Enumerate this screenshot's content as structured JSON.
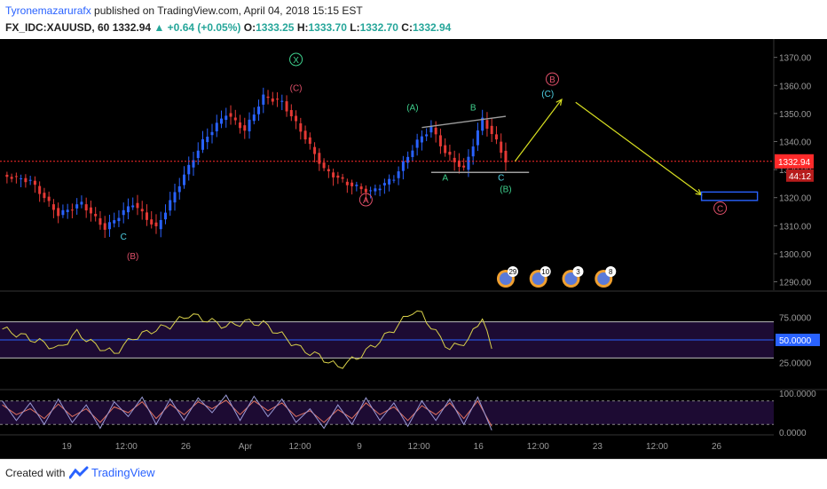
{
  "header": {
    "author": "Tyronemazarurafx",
    "published_text": "published on TradingView.com, April 04, 2018 15:15 EST",
    "symbol": "FX_IDC:XAUUSD, 60",
    "last": "1332.94",
    "change": "+0.64 (+0.05%)",
    "o_label": "O:",
    "o_value": "1333.25",
    "h_label": "H:",
    "h_value": "1333.70",
    "l_label": "L:",
    "l_value": "1332.70",
    "c_label": "C:",
    "c_value": "1332.94"
  },
  "footer": {
    "created_with": "Created with",
    "brand": "TradingView"
  },
  "colors": {
    "background": "#000000",
    "up_candle": "#2962ff",
    "down_candle": "#e53935",
    "price_line": "#ff2a2a",
    "indicator_line": "#d8d04a",
    "indicator_band": "#1d0b33",
    "stoch_k": "#9a9ad6",
    "stoch_d": "#e07060",
    "arrow": "#d9e021",
    "target_box": "#2962ff",
    "wave_green": "#3fd18e",
    "wave_red": "#e0506a",
    "wave_cyan": "#4fd2e6"
  },
  "chart_data": [
    {
      "type": "candlestick",
      "symbol": "FX_IDC:XAUUSD",
      "timeframe": "60",
      "yticks": [
        "1290.00",
        "1300.00",
        "1310.00",
        "1320.00",
        "1330.00",
        "1340.00",
        "1350.00",
        "1360.00",
        "1370.00"
      ],
      "ylim": [
        1287,
        1374
      ],
      "xticks": [
        "19",
        "12:00",
        "26",
        "Apr",
        "12:00",
        "9",
        "12:00",
        "16",
        "12:00",
        "23",
        "12:00",
        "26"
      ],
      "last_price": "1332.94",
      "countdown": "44:12",
      "path_points": [
        [
          0,
          1328
        ],
        [
          6,
          1326
        ],
        [
          12,
          1314
        ],
        [
          17,
          1318
        ],
        [
          22,
          1309
        ],
        [
          28,
          1318
        ],
        [
          33,
          1309
        ],
        [
          39,
          1328
        ],
        [
          43,
          1340
        ],
        [
          48,
          1350
        ],
        [
          52,
          1344
        ],
        [
          56,
          1356
        ],
        [
          60,
          1354
        ],
        [
          64,
          1344
        ],
        [
          69,
          1330
        ],
        [
          74,
          1325
        ],
        [
          79,
          1322
        ],
        [
          84,
          1327
        ],
        [
          89,
          1340
        ],
        [
          92,
          1345
        ],
        [
          95,
          1336
        ],
        [
          99,
          1330
        ],
        [
          103,
          1348
        ],
        [
          106,
          1340
        ],
        [
          108,
          1333
        ]
      ],
      "trendlines": [
        [
          [
            90,
            1345
          ],
          [
            108,
            1349
          ]
        ],
        [
          [
            92,
            1329
          ],
          [
            113,
            1329
          ]
        ]
      ],
      "projection_arrows": [
        [
          [
            110,
            1333
          ],
          [
            120,
            1355
          ]
        ],
        [
          [
            123,
            1354
          ],
          [
            150,
            1321
          ]
        ]
      ],
      "target_box": {
        "x": [
          150,
          162
        ],
        "y": [
          1319,
          1322
        ]
      },
      "wave_labels": [
        {
          "text": "X",
          "x": 63,
          "y": 1368,
          "color": "wave_green",
          "circled": true
        },
        {
          "text": "(C)",
          "x": 63,
          "y": 1358,
          "color": "wave_red"
        },
        {
          "text": "C",
          "x": 26,
          "y": 1305,
          "color": "wave_cyan"
        },
        {
          "text": "(B)",
          "x": 28,
          "y": 1298,
          "color": "wave_red"
        },
        {
          "text": "A",
          "x": 78,
          "y": 1318,
          "color": "wave_red",
          "circled": true
        },
        {
          "text": "(A)",
          "x": 88,
          "y": 1351,
          "color": "wave_green"
        },
        {
          "text": "B",
          "x": 101,
          "y": 1351,
          "color": "wave_green"
        },
        {
          "text": "A",
          "x": 95,
          "y": 1326,
          "color": "wave_green"
        },
        {
          "text": "C",
          "x": 107,
          "y": 1326,
          "color": "wave_cyan"
        },
        {
          "text": "(B)",
          "x": 108,
          "y": 1322,
          "color": "wave_green"
        },
        {
          "text": "B",
          "x": 118,
          "y": 1361,
          "color": "wave_red",
          "circled": true
        },
        {
          "text": "(C)",
          "x": 117,
          "y": 1356,
          "color": "wave_cyan"
        },
        {
          "text": "C",
          "x": 154,
          "y": 1315,
          "color": "wave_red",
          "circled": true
        }
      ],
      "event_badges": [
        {
          "x": 108,
          "count": "29"
        },
        {
          "x": 115,
          "count": "10"
        },
        {
          "x": 122,
          "count": "3"
        },
        {
          "x": 129,
          "count": "8"
        }
      ]
    },
    {
      "type": "line",
      "name": "oscillator",
      "yticks": [
        "25.0000",
        "50.0000",
        "75.0000"
      ],
      "ylim": [
        0,
        100
      ],
      "bands": [
        30,
        50,
        70
      ],
      "highlight": "50.0000",
      "points": [
        [
          0,
          62
        ],
        [
          4,
          55
        ],
        [
          8,
          48
        ],
        [
          12,
          40
        ],
        [
          16,
          58
        ],
        [
          20,
          44
        ],
        [
          24,
          35
        ],
        [
          28,
          52
        ],
        [
          32,
          60
        ],
        [
          36,
          66
        ],
        [
          40,
          78
        ],
        [
          44,
          72
        ],
        [
          48,
          65
        ],
        [
          52,
          70
        ],
        [
          56,
          68
        ],
        [
          60,
          55
        ],
        [
          64,
          40
        ],
        [
          68,
          32
        ],
        [
          72,
          20
        ],
        [
          76,
          30
        ],
        [
          80,
          45
        ],
        [
          84,
          62
        ],
        [
          88,
          82
        ],
        [
          90,
          78
        ],
        [
          93,
          58
        ],
        [
          96,
          40
        ],
        [
          100,
          50
        ],
        [
          103,
          76
        ],
        [
          105,
          38
        ]
      ]
    },
    {
      "type": "line",
      "name": "stochastic",
      "yticks": [
        "0.0000",
        "100.0000"
      ],
      "ylim": [
        0,
        100
      ],
      "bands": [
        20,
        80
      ],
      "k_points": [
        [
          0,
          80
        ],
        [
          3,
          30
        ],
        [
          6,
          75
        ],
        [
          9,
          20
        ],
        [
          12,
          85
        ],
        [
          15,
          25
        ],
        [
          18,
          70
        ],
        [
          21,
          10
        ],
        [
          24,
          78
        ],
        [
          27,
          40
        ],
        [
          30,
          90
        ],
        [
          33,
          20
        ],
        [
          36,
          85
        ],
        [
          39,
          30
        ],
        [
          42,
          88
        ],
        [
          45,
          50
        ],
        [
          48,
          95
        ],
        [
          51,
          30
        ],
        [
          54,
          92
        ],
        [
          57,
          40
        ],
        [
          60,
          85
        ],
        [
          63,
          25
        ],
        [
          66,
          60
        ],
        [
          69,
          10
        ],
        [
          72,
          70
        ],
        [
          75,
          20
        ],
        [
          78,
          88
        ],
        [
          81,
          30
        ],
        [
          84,
          75
        ],
        [
          87,
          15
        ],
        [
          90,
          80
        ],
        [
          93,
          30
        ],
        [
          96,
          85
        ],
        [
          99,
          20
        ],
        [
          102,
          90
        ],
        [
          105,
          5
        ]
      ],
      "d_points": [
        [
          0,
          70
        ],
        [
          3,
          45
        ],
        [
          6,
          60
        ],
        [
          9,
          35
        ],
        [
          12,
          72
        ],
        [
          15,
          40
        ],
        [
          18,
          60
        ],
        [
          21,
          25
        ],
        [
          24,
          65
        ],
        [
          27,
          50
        ],
        [
          30,
          78
        ],
        [
          33,
          35
        ],
        [
          36,
          72
        ],
        [
          39,
          45
        ],
        [
          42,
          78
        ],
        [
          45,
          60
        ],
        [
          48,
          82
        ],
        [
          51,
          45
        ],
        [
          54,
          80
        ],
        [
          57,
          55
        ],
        [
          60,
          75
        ],
        [
          63,
          40
        ],
        [
          66,
          55
        ],
        [
          69,
          25
        ],
        [
          72,
          58
        ],
        [
          75,
          35
        ],
        [
          78,
          75
        ],
        [
          81,
          45
        ],
        [
          84,
          65
        ],
        [
          87,
          30
        ],
        [
          90,
          68
        ],
        [
          93,
          45
        ],
        [
          96,
          75
        ],
        [
          99,
          35
        ],
        [
          102,
          80
        ],
        [
          105,
          15
        ]
      ]
    }
  ]
}
